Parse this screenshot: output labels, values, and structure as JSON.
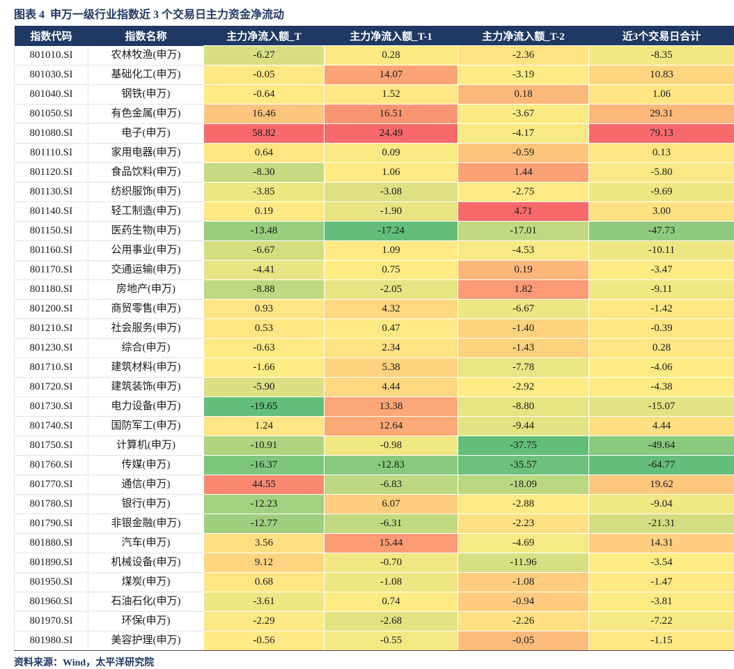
{
  "chart_data": {
    "type": "table",
    "title": "图表 4  申万一级行业指数近 3 个交易日主力资金净流动",
    "columns": [
      "指数代码",
      "指数名称",
      "主力净流入额_T",
      "主力净流入额_T-1",
      "主力净流入额_T-2",
      "近3个交易日合计"
    ],
    "rows": [
      [
        "801010.SI",
        "农林牧渔(申万)",
        "-6.27",
        "0.28",
        "-2.36",
        "-8.35"
      ],
      [
        "801030.SI",
        "基础化工(申万)",
        "-0.05",
        "14.07",
        "-3.19",
        "10.83"
      ],
      [
        "801040.SI",
        "钢铁(申万)",
        "-0.64",
        "1.52",
        "0.18",
        "1.06"
      ],
      [
        "801050.SI",
        "有色金属(申万)",
        "16.46",
        "16.51",
        "-3.67",
        "29.31"
      ],
      [
        "801080.SI",
        "电子(申万)",
        "58.82",
        "24.49",
        "-4.17",
        "79.13"
      ],
      [
        "801110.SI",
        "家用电器(申万)",
        "0.64",
        "0.09",
        "-0.59",
        "0.13"
      ],
      [
        "801120.SI",
        "食品饮料(申万)",
        "-8.30",
        "1.06",
        "1.44",
        "-5.80"
      ],
      [
        "801130.SI",
        "纺织服饰(申万)",
        "-3.85",
        "-3.08",
        "-2.75",
        "-9.69"
      ],
      [
        "801140.SI",
        "轻工制造(申万)",
        "0.19",
        "-1.90",
        "4.71",
        "3.00"
      ],
      [
        "801150.SI",
        "医药生物(申万)",
        "-13.48",
        "-17.24",
        "-17.01",
        "-47.73"
      ],
      [
        "801160.SI",
        "公用事业(申万)",
        "-6.67",
        "1.09",
        "-4.53",
        "-10.11"
      ],
      [
        "801170.SI",
        "交通运输(申万)",
        "-4.41",
        "0.75",
        "0.19",
        "-3.47"
      ],
      [
        "801180.SI",
        "房地产(申万)",
        "-8.88",
        "-2.05",
        "1.82",
        "-9.11"
      ],
      [
        "801200.SI",
        "商贸零售(申万)",
        "0.93",
        "4.32",
        "-6.67",
        "-1.42"
      ],
      [
        "801210.SI",
        "社会服务(申万)",
        "0.53",
        "0.47",
        "-1.40",
        "-0.39"
      ],
      [
        "801230.SI",
        "综合(申万)",
        "-0.63",
        "2.34",
        "-1.43",
        "0.28"
      ],
      [
        "801710.SI",
        "建筑材料(申万)",
        "-1.66",
        "5.38",
        "-7.78",
        "-4.06"
      ],
      [
        "801720.SI",
        "建筑装饰(申万)",
        "-5.90",
        "4.44",
        "-2.92",
        "-4.38"
      ],
      [
        "801730.SI",
        "电力设备(申万)",
        "-19.65",
        "13.38",
        "-8.80",
        "-15.07"
      ],
      [
        "801740.SI",
        "国防军工(申万)",
        "1.24",
        "12.64",
        "-9.44",
        "4.44"
      ],
      [
        "801750.SI",
        "计算机(申万)",
        "-10.91",
        "-0.98",
        "-37.75",
        "-49.64"
      ],
      [
        "801760.SI",
        "传媒(申万)",
        "-16.37",
        "-12.83",
        "-35.57",
        "-64.77"
      ],
      [
        "801770.SI",
        "通信(申万)",
        "44.55",
        "-6.83",
        "-18.09",
        "19.62"
      ],
      [
        "801780.SI",
        "银行(申万)",
        "-12.23",
        "6.07",
        "-2.88",
        "-9.04"
      ],
      [
        "801790.SI",
        "非银金融(申万)",
        "-12.77",
        "-6.31",
        "-2.23",
        "-21.31"
      ],
      [
        "801880.SI",
        "汽车(申万)",
        "3.56",
        "15.44",
        "-4.69",
        "14.31"
      ],
      [
        "801890.SI",
        "机械设备(申万)",
        "9.12",
        "-0.70",
        "-11.96",
        "-3.54"
      ],
      [
        "801950.SI",
        "煤炭(申万)",
        "0.68",
        "-1.08",
        "-1.08",
        "-1.47"
      ],
      [
        "801960.SI",
        "石油石化(申万)",
        "-3.61",
        "0.74",
        "-0.94",
        "-3.81"
      ],
      [
        "801970.SI",
        "环保(申万)",
        "-2.29",
        "-2.68",
        "-2.26",
        "-7.22"
      ],
      [
        "801980.SI",
        "美容护理(申万)",
        "-0.56",
        "-0.55",
        "-0.05",
        "-1.15"
      ]
    ],
    "heatmap": {
      "applies_to_columns": [
        "主力净流入额_T",
        "主力净流入额_T-1",
        "主力净流入额_T-2",
        "近3个交易日合计"
      ],
      "scale": "per-column 3-color scale: column min = green, column median = yellow, column max = red"
    }
  },
  "footer": {
    "source": "资料来源：Wind，太平洋研究院"
  },
  "colors": {
    "title": "#1f3864",
    "header_bg": "#1f3864",
    "header_text": "#ffffff",
    "scale_min": "#63be7b",
    "scale_mid": "#ffeb84",
    "scale_max": "#f8696b",
    "cell_text": "#1a1a1a",
    "grid": "#e3e3e3"
  }
}
